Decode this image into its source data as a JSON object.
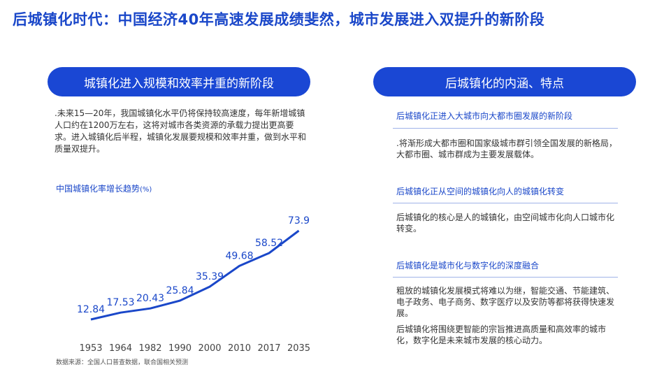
{
  "title": "后城镇化时代：中国经济40年高速发展成绩斐然，城市发展进入双提升的新阶段",
  "left": {
    "pill": "城镇化进入规模和效率并重的新阶段",
    "intro": ".未来15—20年，我国城镇化水平仍将保持较高速度，每年新增城镇人口约在1200万左右，这将对城市各类资源的承载力提出更高要求。进入城镇化后半程，城镇化发展要规模和效率并重，做到水平和质量双提升。",
    "chart_title": "中国城镇化率增长趋势",
    "chart_unit": "(%)",
    "source": "数据来源：全国人口普查数据，联合国相关预测"
  },
  "right": {
    "pill": "后城镇化的内涵、特点",
    "sections": [
      {
        "heading": "后城镇化正进入大城市向大都市圈发展的新阶段",
        "body": ".将渐形成大都市圈和国家级城市群引领全国发展的新格局，大都市圈、城市群成为主要发展载体。"
      },
      {
        "heading": "后城镇化正从空间的城镇化向人的城镇化转变",
        "body": "后城镇化的核心是人的城镇化，由空间城市化向人口城市化转变。"
      },
      {
        "heading": "后城镇化是城市化与数字化的深度融合",
        "body": "粗放的城镇化发展模式将难以为继，智能交通、节能建筑、电子政务、电子商务、数字医疗以及安防等都将获得快速发展。",
        "body2": "后城镇化将围绕更智能的宗旨推进高质量和高效率的城市化，数字化是未来城市发展的核心动力。"
      }
    ]
  },
  "chart_data": {
    "type": "line",
    "categories": [
      "1953",
      "1964",
      "1982",
      "1990",
      "2000",
      "2010",
      "2017",
      "2035"
    ],
    "values": [
      12.84,
      17.53,
      20.43,
      25.84,
      35.39,
      49.68,
      58.52,
      73.9
    ],
    "value_labels": [
      "12.84",
      "17.53",
      "20.43",
      "25.84",
      "35.39",
      "49.68",
      "58.52",
      "73.9"
    ],
    "xlabel": "",
    "ylabel": "",
    "grid": false,
    "color": "#1a47c9"
  }
}
